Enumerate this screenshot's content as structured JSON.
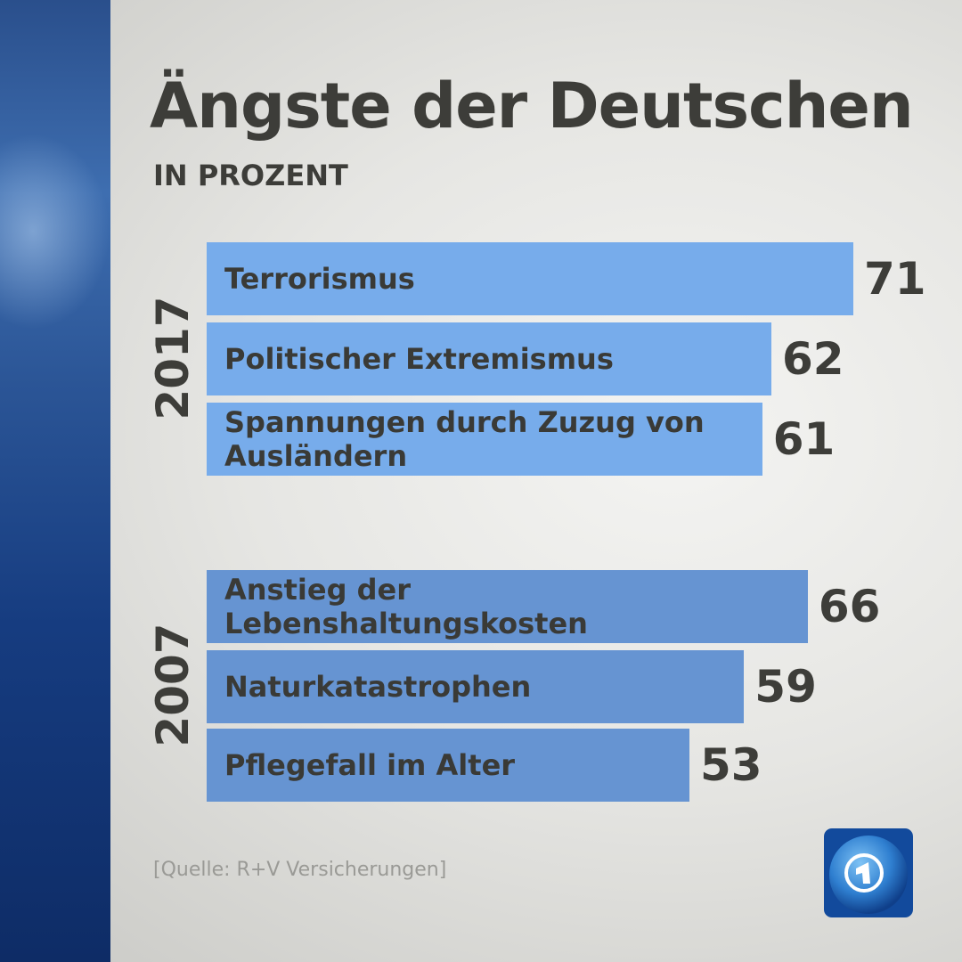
{
  "chart_data": {
    "type": "bar",
    "orientation": "horizontal",
    "title": "Ängste der Deutschen",
    "subtitle": "IN PROZENT",
    "xlim": [
      0,
      71
    ],
    "groups": [
      {
        "name": "2017",
        "color": "#77aceb",
        "categories": [
          "Terrorismus",
          "Politischer Extremismus",
          "Spannungen durch Zuzug von Ausländern"
        ],
        "values": [
          71,
          62,
          61
        ]
      },
      {
        "name": "2007",
        "color": "#6694d2",
        "categories": [
          "Anstieg der Lebenshaltungskosten",
          "Naturkatastrophen",
          "Pflegefall im Alter"
        ],
        "values": [
          66,
          59,
          53
        ]
      }
    ],
    "source": "[Quelle: R+V Versicherungen]"
  },
  "logo": {
    "icon": "ard-1-globe-logo",
    "text": "1"
  }
}
